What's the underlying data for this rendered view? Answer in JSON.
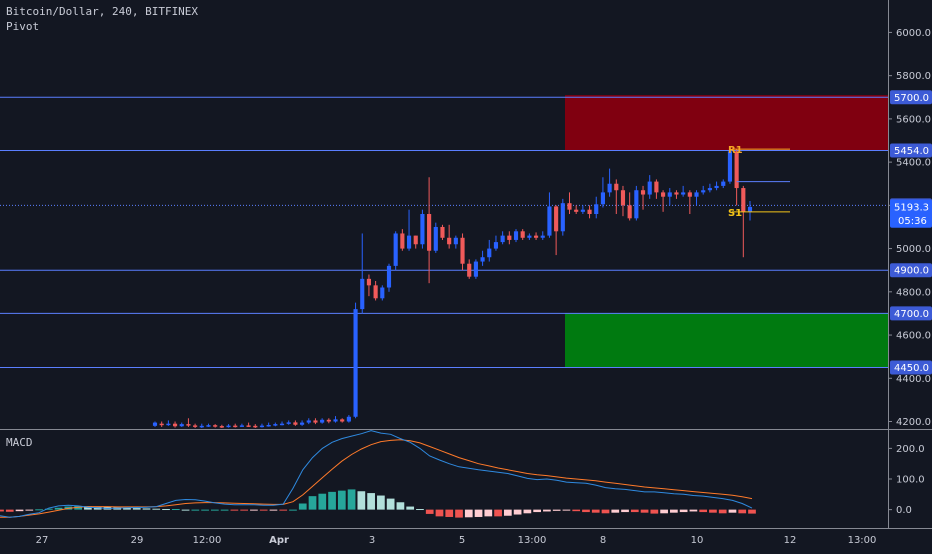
{
  "header": {
    "symbol_line": "Bitcoin/Dollar, 240, BITFINEX",
    "indicator": "Pivot",
    "macd_label": "MACD"
  },
  "colors": {
    "background": "#131722",
    "up_candle": "#2962ff",
    "down_candle": "#f05a5a",
    "level_line": "#5b7fff",
    "supply_zone": "#800010",
    "demand_zone": "#007a10",
    "macd_line": "#2f8ae0",
    "signal_line": "#ff7a2a",
    "hist_up": "#26a69a",
    "hist_down": "#ef5350",
    "pivot_r1": "#f5a623",
    "pivot_s1": "#f5c518"
  },
  "chart_data": {
    "type": "candlestick",
    "price_axis": {
      "ticks": [
        4200,
        4400,
        4600,
        4800,
        5000,
        5200,
        5400,
        5600,
        5800,
        6000
      ],
      "tick_labels": [
        "4200.0",
        "4400.0",
        "4600.0",
        "4800.0",
        "5000.0",
        "5200.0",
        "5400.0",
        "5600.0",
        "5800.0",
        "6000.0"
      ],
      "range": [
        4170,
        6150
      ]
    },
    "time_axis": {
      "ticks": [
        "27",
        "29",
        "12:00",
        "Apr",
        "3",
        "5",
        "13:00",
        "8",
        "10",
        "12",
        "13:00"
      ]
    },
    "level_lines": [
      {
        "price": 5700,
        "label": "5700.0"
      },
      {
        "price": 5454,
        "label": "5454.0"
      },
      {
        "price": 5200,
        "label": "5200.0",
        "dotted": true
      },
      {
        "price": 4900,
        "label": "4900.0"
      },
      {
        "price": 4700,
        "label": "4700.0"
      },
      {
        "price": 4450,
        "label": "4450.0"
      }
    ],
    "zones": [
      {
        "name": "supply",
        "from": 5454,
        "to": 5710
      },
      {
        "name": "demand",
        "from": 4450,
        "to": 4700
      }
    ],
    "pivots": [
      {
        "label": "R1",
        "price": 5460
      },
      {
        "label": "S1",
        "price": 5170
      }
    ],
    "last_price": {
      "value": "5193.3",
      "countdown": "05:36"
    },
    "candles": [
      [
        4180,
        4195,
        4175,
        4200
      ],
      [
        4190,
        4185,
        4175,
        4200
      ],
      [
        4185,
        4190,
        4180,
        4205
      ],
      [
        4190,
        4178,
        4172,
        4200
      ],
      [
        4178,
        4188,
        4175,
        4195
      ],
      [
        4188,
        4182,
        4175,
        4215
      ],
      [
        4182,
        4176,
        4170,
        4190
      ],
      [
        4176,
        4180,
        4170,
        4190
      ],
      [
        4180,
        4183,
        4175,
        4190
      ],
      [
        4183,
        4179,
        4172,
        4188
      ],
      [
        4179,
        4177,
        4170,
        4185
      ],
      [
        4177,
        4181,
        4172,
        4188
      ],
      [
        4181,
        4178,
        4172,
        4190
      ],
      [
        4178,
        4182,
        4175,
        4190
      ],
      [
        4182,
        4180,
        4175,
        4195
      ],
      [
        4180,
        4176,
        4170,
        4188
      ],
      [
        4176,
        4181,
        4172,
        4190
      ],
      [
        4181,
        4184,
        4176,
        4195
      ],
      [
        4184,
        4188,
        4178,
        4195
      ],
      [
        4188,
        4190,
        4182,
        4200
      ],
      [
        4190,
        4196,
        4185,
        4205
      ],
      [
        4196,
        4185,
        4180,
        4205
      ],
      [
        4185,
        4195,
        4180,
        4205
      ],
      [
        4195,
        4205,
        4188,
        4215
      ],
      [
        4205,
        4195,
        4188,
        4215
      ],
      [
        4195,
        4208,
        4190,
        4215
      ],
      [
        4208,
        4200,
        4192,
        4215
      ],
      [
        4200,
        4210,
        4195,
        4225
      ],
      [
        4210,
        4200,
        4195,
        4215
      ],
      [
        4200,
        4222,
        4195,
        4230
      ],
      [
        4222,
        4720,
        4215,
        4750
      ],
      [
        4720,
        4860,
        4700,
        5070
      ],
      [
        4860,
        4830,
        4780,
        4880
      ],
      [
        4830,
        4770,
        4760,
        4850
      ],
      [
        4770,
        4820,
        4760,
        4830
      ],
      [
        4820,
        4920,
        4800,
        4930
      ],
      [
        4920,
        5070,
        4900,
        5080
      ],
      [
        5070,
        5000,
        4990,
        5090
      ],
      [
        5000,
        5060,
        4990,
        5180
      ],
      [
        5060,
        5020,
        5000,
        5060
      ],
      [
        5020,
        5160,
        5000,
        5180
      ],
      [
        5160,
        4990,
        4840,
        5330
      ],
      [
        4990,
        5100,
        4980,
        5120
      ],
      [
        5100,
        5050,
        5040,
        5110
      ],
      [
        5050,
        5020,
        5000,
        5110
      ],
      [
        5020,
        5050,
        5000,
        5060
      ],
      [
        5050,
        4930,
        4900,
        5070
      ],
      [
        4930,
        4870,
        4860,
        4950
      ],
      [
        4870,
        4940,
        4860,
        4950
      ],
      [
        4940,
        4960,
        4920,
        4990
      ],
      [
        4960,
        5000,
        4940,
        5040
      ],
      [
        5000,
        5030,
        4990,
        5060
      ],
      [
        5030,
        5060,
        5020,
        5080
      ],
      [
        5060,
        5040,
        5020,
        5080
      ],
      [
        5040,
        5080,
        5030,
        5090
      ],
      [
        5080,
        5050,
        5040,
        5090
      ],
      [
        5050,
        5060,
        5040,
        5070
      ],
      [
        5060,
        5050,
        5040,
        5075
      ],
      [
        5050,
        5060,
        5040,
        5080
      ],
      [
        5060,
        5195,
        5050,
        5260
      ],
      [
        5195,
        5080,
        4970,
        5200
      ],
      [
        5080,
        5210,
        5060,
        5230
      ],
      [
        5210,
        5180,
        5160,
        5260
      ],
      [
        5180,
        5170,
        5160,
        5200
      ],
      [
        5170,
        5180,
        5160,
        5200
      ],
      [
        5180,
        5160,
        5140,
        5200
      ],
      [
        5160,
        5205,
        5140,
        5240
      ],
      [
        5205,
        5260,
        5190,
        5330
      ],
      [
        5260,
        5300,
        5240,
        5370
      ],
      [
        5300,
        5270,
        5160,
        5320
      ],
      [
        5270,
        5200,
        5150,
        5290
      ],
      [
        5200,
        5140,
        5130,
        5260
      ],
      [
        5140,
        5270,
        5130,
        5290
      ],
      [
        5270,
        5250,
        5180,
        5290
      ],
      [
        5250,
        5310,
        5230,
        5340
      ],
      [
        5310,
        5260,
        5230,
        5320
      ],
      [
        5260,
        5240,
        5170,
        5270
      ],
      [
        5240,
        5260,
        5200,
        5280
      ],
      [
        5260,
        5250,
        5230,
        5270
      ],
      [
        5250,
        5260,
        5240,
        5290
      ],
      [
        5260,
        5240,
        5160,
        5270
      ],
      [
        5240,
        5260,
        5200,
        5270
      ],
      [
        5260,
        5270,
        5250,
        5290
      ],
      [
        5270,
        5280,
        5260,
        5300
      ],
      [
        5280,
        5290,
        5270,
        5310
      ],
      [
        5290,
        5310,
        5280,
        5320
      ],
      [
        5310,
        5450,
        5300,
        5470
      ],
      [
        5450,
        5280,
        5200,
        5460
      ],
      [
        5280,
        5170,
        4960,
        5290
      ],
      [
        5170,
        5193,
        5130,
        5220
      ]
    ],
    "macd": {
      "axis_ticks": [
        0,
        100,
        200
      ],
      "axis_labels": [
        "0.0",
        "100.0",
        "200.0"
      ],
      "range": [
        -60,
        260
      ],
      "macd_line": [
        -20,
        -25,
        -22,
        -15,
        -10,
        5,
        12,
        14,
        12,
        8,
        6,
        4,
        5,
        6,
        7,
        8,
        10,
        20,
        30,
        33,
        32,
        28,
        22,
        18,
        16,
        16,
        16,
        14,
        14,
        18,
        70,
        130,
        170,
        200,
        220,
        232,
        240,
        248,
        258,
        250,
        246,
        232,
        220,
        200,
        175,
        162,
        150,
        140,
        135,
        130,
        126,
        122,
        118,
        110,
        102,
        98,
        100,
        96,
        90,
        88,
        86,
        80,
        72,
        68,
        66,
        62,
        58,
        58,
        55,
        52,
        50,
        46,
        44,
        40,
        36,
        30,
        20,
        5
      ],
      "signal_line": [
        -25,
        -25,
        -22,
        -18,
        -14,
        -8,
        -2,
        4,
        8,
        10,
        10,
        10,
        9,
        9,
        9,
        9,
        10,
        12,
        16,
        20,
        22,
        23,
        23,
        22,
        21,
        20,
        19,
        18,
        17,
        17,
        26,
        48,
        76,
        104,
        132,
        158,
        180,
        198,
        212,
        222,
        226,
        228,
        225,
        218,
        206,
        194,
        182,
        170,
        160,
        150,
        143,
        136,
        130,
        124,
        118,
        114,
        111,
        107,
        103,
        100,
        97,
        94,
        90,
        86,
        82,
        78,
        74,
        71,
        68,
        65,
        62,
        59,
        56,
        53,
        50,
        47,
        42,
        36
      ],
      "histogram": [
        -6,
        -7,
        -5,
        -3,
        1,
        3,
        6,
        10,
        12,
        11,
        10,
        9,
        8,
        7,
        5,
        4,
        3,
        2,
        2,
        0,
        0,
        0,
        0,
        0,
        -2,
        -3,
        -2,
        -3,
        -2,
        -3,
        0,
        20,
        44,
        52,
        58,
        62,
        66,
        60,
        54,
        46,
        36,
        24,
        10,
        2,
        -14,
        -22,
        -24,
        -26,
        -25,
        -24,
        -22,
        -22,
        -20,
        -16,
        -12,
        -8,
        -6,
        -4,
        -3,
        -5,
        -8,
        -10,
        -12,
        -10,
        -8,
        -8,
        -10,
        -13,
        -12,
        -10,
        -8,
        -6,
        -8,
        -10,
        -12,
        -10,
        -12,
        -13
      ]
    }
  }
}
